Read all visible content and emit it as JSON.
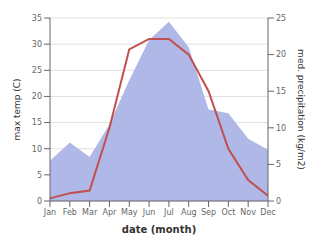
{
  "chart_data": {
    "type": "line",
    "xlabel": "date (month)",
    "ylabel": "max temp (C)",
    "y2label": "med. precipitation (kg/m2)",
    "categories": [
      "Jan",
      "Feb",
      "Mar",
      "Apr",
      "May",
      "Jun",
      "Jul",
      "Aug",
      "Sep",
      "Oct",
      "Nov",
      "Dec"
    ],
    "series": [
      {
        "type": "area",
        "axis": "y2",
        "color": "#b0b8e8",
        "values": [
          5.5,
          8.0,
          6.0,
          10.5,
          16.5,
          22.0,
          24.5,
          21.0,
          12.5,
          12.0,
          8.5,
          7.0
        ]
      },
      {
        "type": "line",
        "color": "#c0504d",
        "values": [
          0.5,
          1.5,
          2.0,
          14.0,
          29.0,
          31.0,
          31.0,
          28.0,
          21.0,
          10.0,
          4.0,
          1.0
        ]
      }
    ],
    "ylim": [
      0,
      35
    ],
    "yticks": [
      0,
      5,
      10,
      15,
      20,
      25,
      30,
      35
    ],
    "y2lim": [
      0,
      25
    ],
    "y2ticks": [
      0,
      5,
      10,
      15,
      20,
      25
    ],
    "grid": true
  }
}
